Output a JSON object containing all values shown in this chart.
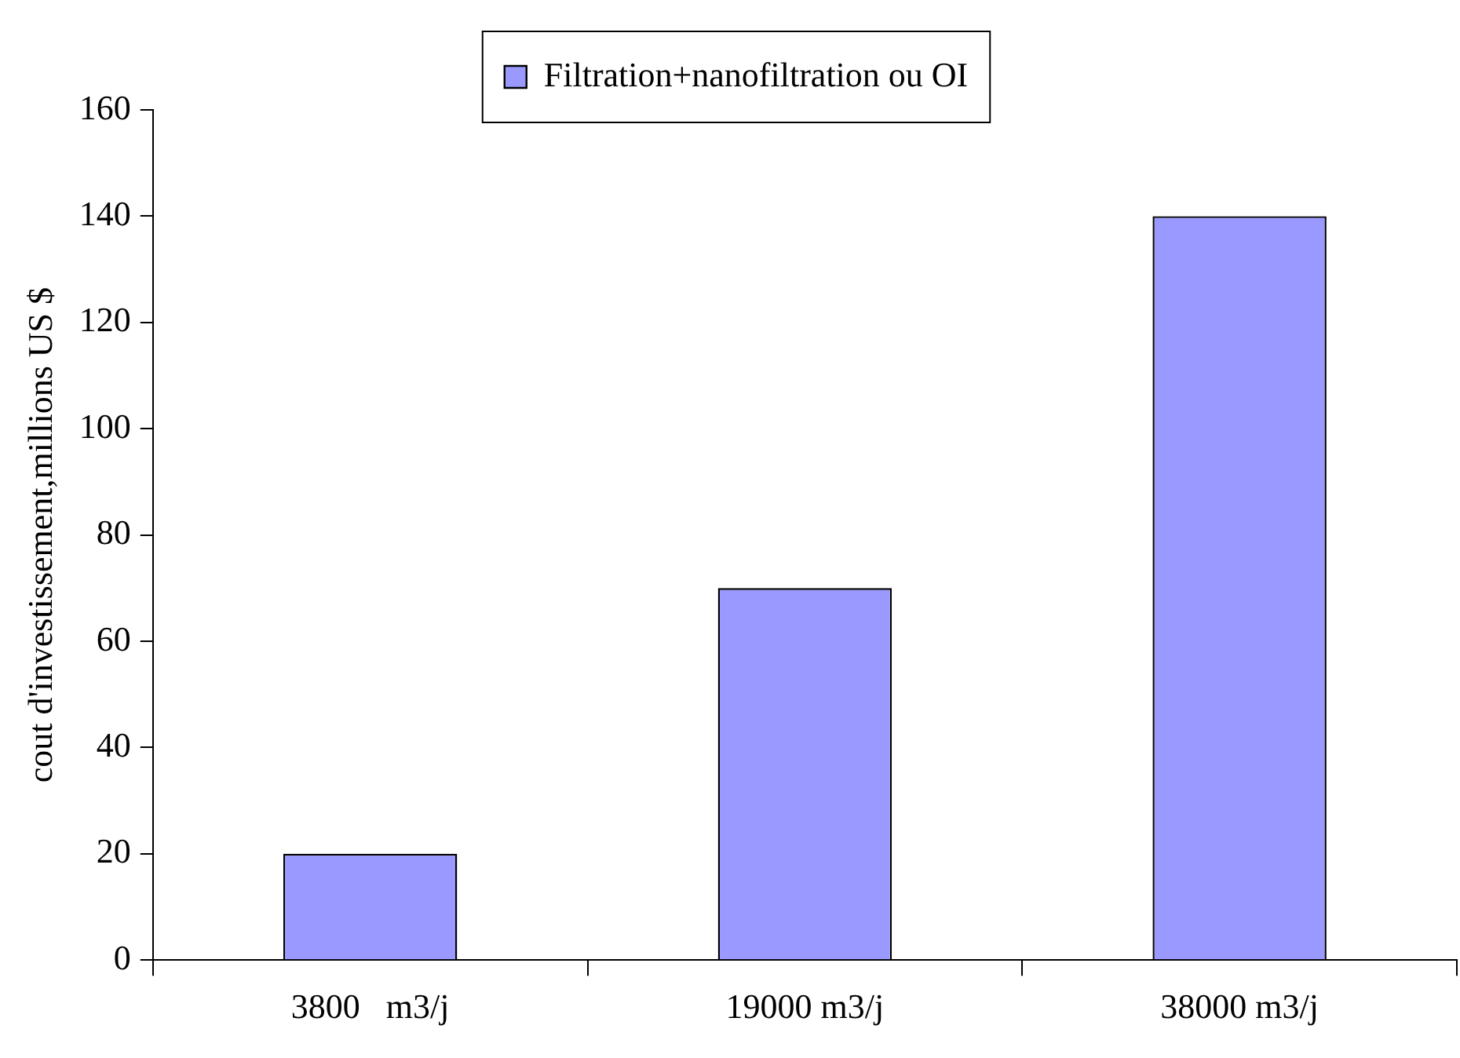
{
  "chart_data": {
    "type": "bar",
    "ylabel": "cout d'investissement,millions US $",
    "categories": [
      "3800   m3/j",
      "19000 m3/j",
      "38000 m3/j"
    ],
    "series": [
      {
        "name": "Filtration+nanofiltration ou OI",
        "color": "#9999ff",
        "values": [
          20,
          70,
          140
        ]
      }
    ],
    "ylim": [
      0,
      160
    ],
    "yticks": [
      0,
      20,
      40,
      60,
      80,
      100,
      120,
      140,
      160
    ],
    "grid": false,
    "legend": "top"
  }
}
